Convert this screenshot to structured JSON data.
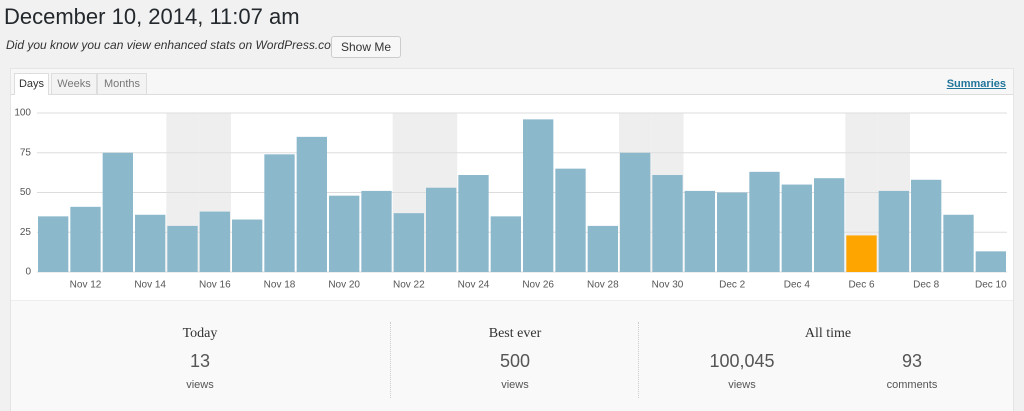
{
  "header": {
    "title": "December 10, 2014, 11:07 am",
    "notice": "Did you know you can view enhanced stats on WordPress.com?",
    "button": "Show Me"
  },
  "tabs": [
    "Days",
    "Weeks",
    "Months"
  ],
  "summaries_link": "Summaries",
  "chart_data": {
    "type": "bar",
    "categories": [
      null,
      "Nov 12",
      null,
      "Nov 14",
      null,
      "Nov 16",
      null,
      "Nov 18",
      null,
      "Nov 20",
      null,
      "Nov 22",
      null,
      "Nov 24",
      null,
      "Nov 26",
      null,
      "Nov 28",
      null,
      "Nov 30",
      null,
      "Dec 2",
      null,
      "Dec 4",
      null,
      "Dec 6",
      null,
      "Dec 8",
      null,
      "Dec 10"
    ],
    "values": [
      35,
      41,
      75,
      36,
      29,
      38,
      33,
      74,
      85,
      48,
      51,
      37,
      53,
      61,
      35,
      96,
      65,
      29,
      75,
      61,
      51,
      50,
      63,
      55,
      59,
      23,
      51,
      58,
      36,
      13
    ],
    "colors": [
      "#8cb8cc",
      "#8cb8cc",
      "#8cb8cc",
      "#8cb8cc",
      "#8cb8cc",
      "#8cb8cc",
      "#8cb8cc",
      "#8cb8cc",
      "#8cb8cc",
      "#8cb8cc",
      "#8cb8cc",
      "#8cb8cc",
      "#8cb8cc",
      "#8cb8cc",
      "#8cb8cc",
      "#8cb8cc",
      "#8cb8cc",
      "#8cb8cc",
      "#8cb8cc",
      "#8cb8cc",
      "#8cb8cc",
      "#8cb8cc",
      "#8cb8cc",
      "#8cb8cc",
      "#8cb8cc",
      "#ffa500",
      "#8cb8cc",
      "#8cb8cc",
      "#8cb8cc",
      "#8cb8cc"
    ],
    "band_colors": [
      "#fff",
      "#fff",
      "#fff",
      "#fff",
      "#eee",
      "#eee",
      "#fff",
      "#fff",
      "#fff",
      "#fff",
      "#fff",
      "#eee",
      "#eee",
      "#fff",
      "#fff",
      "#fff",
      "#fff",
      "#fff",
      "#eee",
      "#eee",
      "#fff",
      "#fff",
      "#fff",
      "#fff",
      "#fff",
      "#eee",
      "#eee",
      "#fff",
      "#fff",
      "#fff"
    ],
    "ylim": [
      0,
      100
    ],
    "yticks": [
      0,
      25,
      50,
      75,
      100
    ],
    "grid": true
  },
  "stats": [
    {
      "label": "Today",
      "items": [
        {
          "value": "13",
          "unit": "views"
        }
      ]
    },
    {
      "label": "Best ever",
      "items": [
        {
          "value": "500",
          "unit": "views"
        }
      ]
    },
    {
      "label": "All time",
      "items": [
        {
          "value": "100,045",
          "unit": "views"
        },
        {
          "value": "93",
          "unit": "comments"
        }
      ]
    }
  ]
}
